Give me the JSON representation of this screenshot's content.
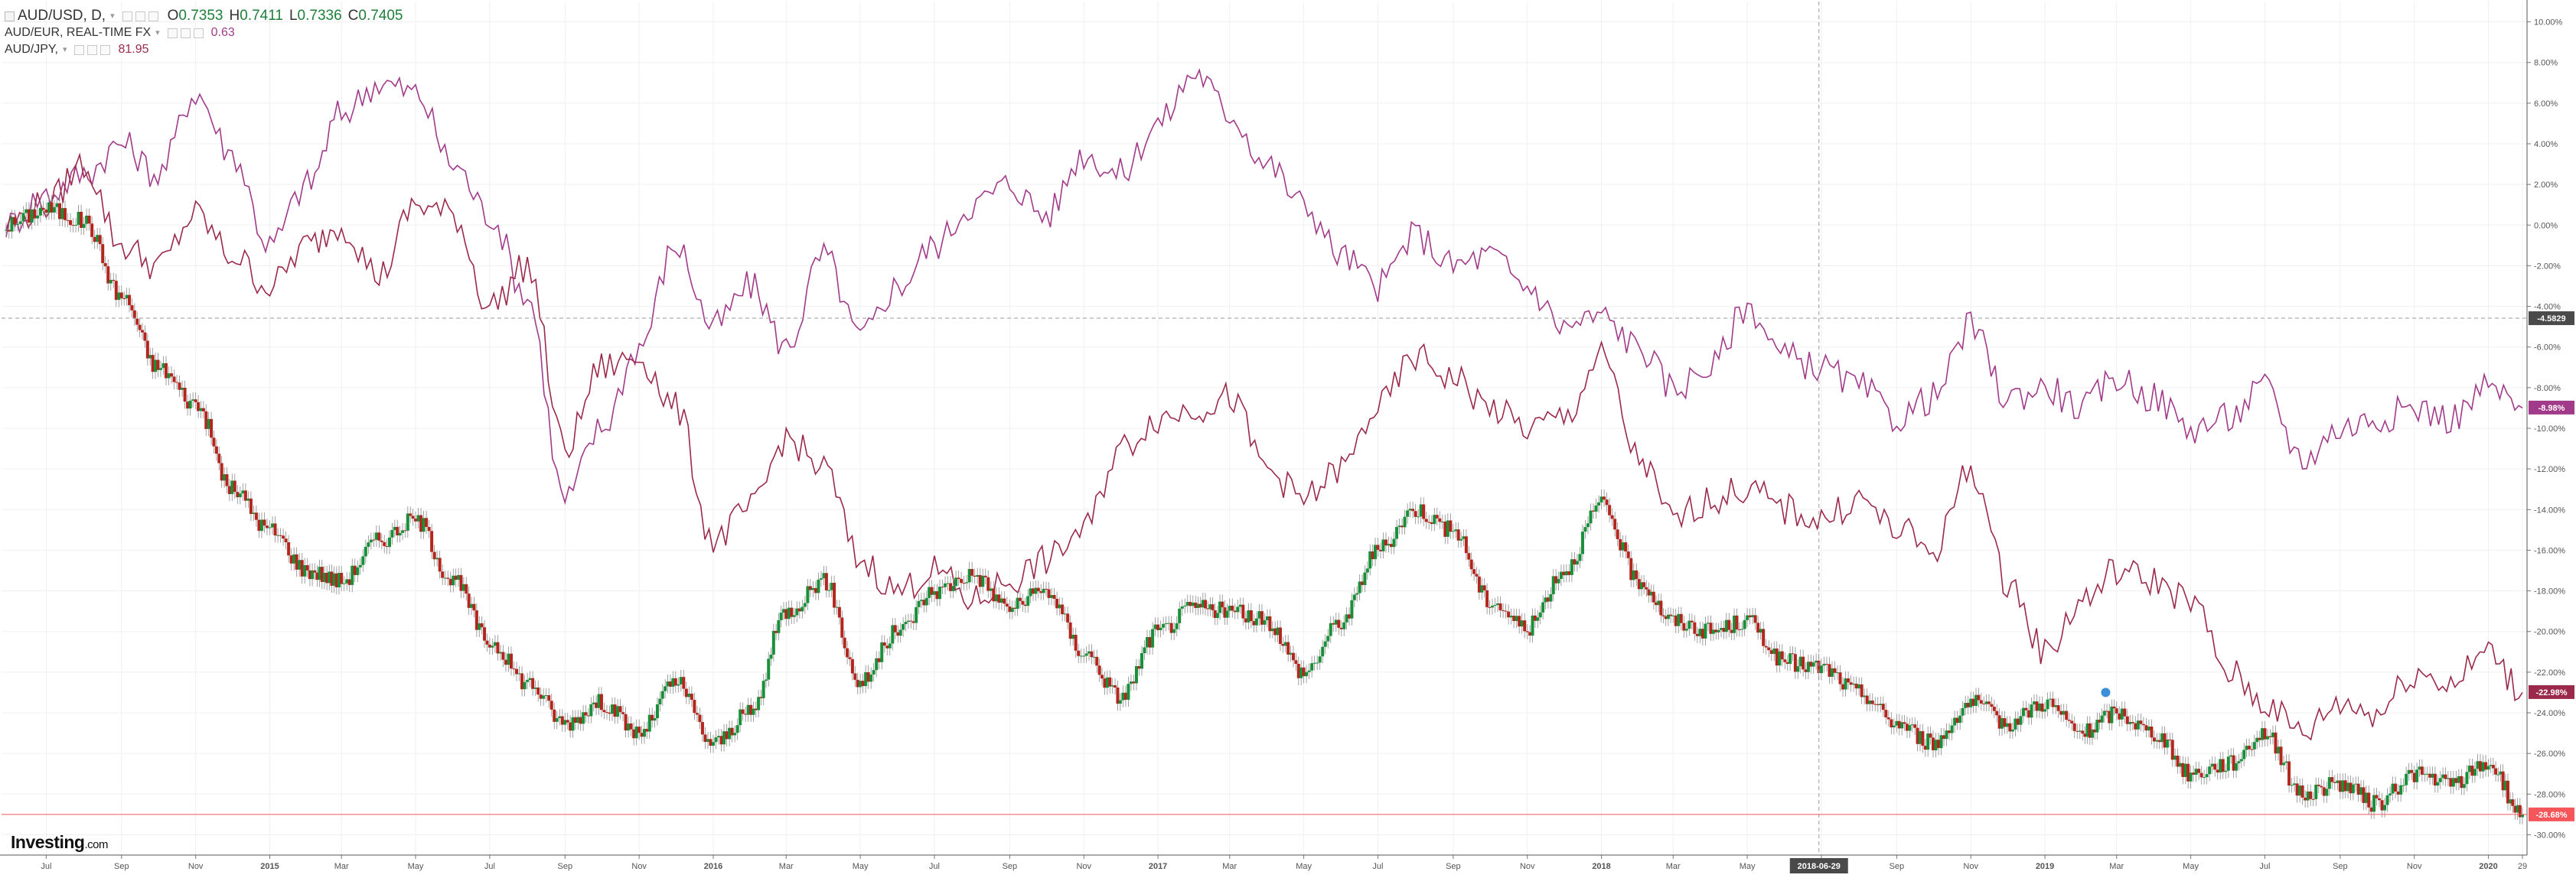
{
  "legend": {
    "main": {
      "symbol_label": "AUD/USD, D,",
      "open_label": "O",
      "open": "0.7353",
      "high_label": "H",
      "high": "0.7411",
      "low_label": "L",
      "low": "0.7336",
      "close_label": "C",
      "close": "0.7405"
    },
    "eur": {
      "label": "AUD/EUR, REAL-TIME FX",
      "value": "0.63"
    },
    "jpy": {
      "label": "AUD/JPY,",
      "value": "81.95"
    }
  },
  "logo": {
    "name": "Investing",
    "suffix": ".com"
  },
  "colors": {
    "up": "#1a8f3a",
    "down": "#b3261e",
    "aud_eur": "#a23a8a",
    "aud_jpy": "#9b2a4a",
    "last_price_line": "#f5565a",
    "crosshair_badge": "#4a4a4a"
  },
  "chart_data": {
    "type": "line",
    "title": "",
    "ylabel": "",
    "y_unit": "%",
    "ylim": [
      -31,
      11
    ],
    "y_ticks": [
      "10.00%",
      "8.00%",
      "6.00%",
      "4.00%",
      "2.00%",
      "0.00%",
      "-2.00%",
      "-4.00%",
      "-6.00%",
      "-8.00%",
      "-10.00%",
      "-12.00%",
      "-14.00%",
      "-16.00%",
      "-18.00%",
      "-20.00%",
      "-22.00%",
      "-24.00%",
      "-26.00%",
      "-28.00%",
      "-30.00%"
    ],
    "x_ticks": [
      "Jul",
      "Sep",
      "Nov",
      "2015",
      "Mar",
      "May",
      "Jul",
      "Sep",
      "Nov",
      "2016",
      "Mar",
      "May",
      "Jul",
      "Sep",
      "Nov",
      "2017",
      "Mar",
      "May",
      "Jul",
      "Sep",
      "Nov",
      "2018",
      "Mar",
      "May",
      "Jul",
      "Sep",
      "Nov",
      "2019",
      "Mar",
      "May",
      "Jul",
      "Sep",
      "Nov",
      "2020",
      "29"
    ],
    "grid": true,
    "series": [
      {
        "name": "AUD/USD",
        "style": "candles",
        "x": [
          "2014-05-29",
          "2014-07-01",
          "2014-08-01",
          "2014-09-01",
          "2014-10-01",
          "2014-11-01",
          "2014-12-01",
          "2015-01-01",
          "2015-02-01",
          "2015-03-01",
          "2015-04-01",
          "2015-05-01",
          "2015-06-01",
          "2015-07-01",
          "2015-08-01",
          "2015-09-01",
          "2015-10-01",
          "2015-11-01",
          "2015-12-01",
          "2016-01-01",
          "2016-02-01",
          "2016-03-01",
          "2016-04-01",
          "2016-05-01",
          "2016-06-01",
          "2016-07-01",
          "2016-08-01",
          "2016-09-01",
          "2016-10-01",
          "2016-11-01",
          "2016-12-01",
          "2017-01-01",
          "2017-02-01",
          "2017-03-01",
          "2017-04-01",
          "2017-05-01",
          "2017-06-01",
          "2017-07-01",
          "2017-08-01",
          "2017-09-01",
          "2017-10-01",
          "2017-11-01",
          "2017-12-01",
          "2018-01-01",
          "2018-02-01",
          "2018-03-01",
          "2018-04-01",
          "2018-05-01",
          "2018-06-01",
          "2018-07-01",
          "2018-08-01",
          "2018-09-01",
          "2018-10-01",
          "2018-11-01",
          "2018-12-01",
          "2019-01-01",
          "2019-02-01",
          "2019-03-01",
          "2019-04-01",
          "2019-05-01",
          "2019-06-01",
          "2019-07-01",
          "2019-08-01",
          "2019-09-01",
          "2019-10-01",
          "2019-11-01",
          "2019-12-01",
          "2020-01-01",
          "2020-01-29"
        ],
        "values": [
          0.0,
          0.8,
          0.2,
          -3.5,
          -7.0,
          -8.8,
          -13.0,
          -15.0,
          -17.0,
          -17.5,
          -15.5,
          -14.5,
          -17.5,
          -20.5,
          -22.5,
          -24.5,
          -23.5,
          -25.0,
          -22.5,
          -25.5,
          -24.0,
          -19.0,
          -17.5,
          -22.5,
          -20.0,
          -18.0,
          -17.2,
          -18.8,
          -18.0,
          -21.0,
          -23.2,
          -20.0,
          -18.8,
          -19.0,
          -19.5,
          -22.0,
          -19.5,
          -16.0,
          -14.0,
          -15.0,
          -18.5,
          -19.8,
          -17.0,
          -13.8,
          -17.5,
          -19.5,
          -20.0,
          -19.5,
          -21.5,
          -21.8,
          -23.0,
          -24.5,
          -25.5,
          -23.5,
          -24.5,
          -23.5,
          -25.0,
          -24.0,
          -25.0,
          -27.0,
          -26.5,
          -25.0,
          -28.0,
          -27.5,
          -28.5,
          -27.0,
          -27.5,
          -26.5,
          -29.0
        ]
      },
      {
        "name": "AUD/EUR",
        "style": "line",
        "x": [
          "2014-05-29",
          "2014-07-01",
          "2014-08-01",
          "2014-09-01",
          "2014-10-01",
          "2014-11-01",
          "2014-12-01",
          "2015-01-01",
          "2015-02-01",
          "2015-03-01",
          "2015-04-01",
          "2015-05-01",
          "2015-06-01",
          "2015-07-01",
          "2015-08-01",
          "2015-09-01",
          "2015-10-01",
          "2015-11-01",
          "2015-12-01",
          "2016-01-01",
          "2016-02-01",
          "2016-03-01",
          "2016-04-01",
          "2016-05-01",
          "2016-06-01",
          "2016-07-01",
          "2016-08-01",
          "2016-09-01",
          "2016-10-01",
          "2016-11-01",
          "2016-12-01",
          "2017-01-01",
          "2017-02-01",
          "2017-03-01",
          "2017-04-01",
          "2017-05-01",
          "2017-06-01",
          "2017-07-01",
          "2017-08-01",
          "2017-09-01",
          "2017-10-01",
          "2017-11-01",
          "2017-12-01",
          "2018-01-01",
          "2018-02-01",
          "2018-03-01",
          "2018-04-01",
          "2018-05-01",
          "2018-06-01",
          "2018-07-01",
          "2018-08-01",
          "2018-09-01",
          "2018-10-01",
          "2018-11-01",
          "2018-12-01",
          "2019-01-01",
          "2019-02-01",
          "2019-03-01",
          "2019-04-01",
          "2019-05-01",
          "2019-06-01",
          "2019-07-01",
          "2019-08-01",
          "2019-09-01",
          "2019-10-01",
          "2019-11-01",
          "2019-12-01",
          "2020-01-01",
          "2020-01-29"
        ],
        "values": [
          0.0,
          1.5,
          2.5,
          4.0,
          2.5,
          6.5,
          3.5,
          -1.0,
          2.0,
          5.5,
          7.0,
          6.5,
          3.0,
          0.5,
          -3.5,
          -13.5,
          -10.0,
          -6.0,
          -1.0,
          -5.0,
          -3.0,
          -6.0,
          -1.5,
          -5.5,
          -3.0,
          -1.0,
          1.0,
          2.0,
          0.5,
          3.5,
          2.5,
          5.0,
          7.5,
          5.5,
          3.0,
          1.0,
          -1.5,
          -3.0,
          -0.5,
          -2.0,
          -1.5,
          -3.0,
          -5.0,
          -4.5,
          -6.0,
          -8.0,
          -7.0,
          -4.0,
          -6.5,
          -7.0,
          -8.0,
          -9.5,
          -8.5,
          -5.0,
          -8.5,
          -8.0,
          -9.0,
          -7.5,
          -8.5,
          -10.0,
          -9.5,
          -8.0,
          -11.5,
          -10.0,
          -9.5,
          -9.0,
          -9.5,
          -8.0,
          -9.0
        ]
      },
      {
        "name": "AUD/JPY",
        "style": "line",
        "x": [
          "2014-05-29",
          "2014-07-01",
          "2014-08-01",
          "2014-09-01",
          "2014-10-01",
          "2014-11-01",
          "2014-12-01",
          "2015-01-01",
          "2015-02-01",
          "2015-03-01",
          "2015-04-01",
          "2015-05-01",
          "2015-06-01",
          "2015-07-01",
          "2015-08-01",
          "2015-09-01",
          "2015-10-01",
          "2015-11-01",
          "2015-12-01",
          "2016-01-01",
          "2016-02-01",
          "2016-03-01",
          "2016-04-01",
          "2016-05-01",
          "2016-06-01",
          "2016-07-01",
          "2016-08-01",
          "2016-09-01",
          "2016-10-01",
          "2016-11-01",
          "2016-12-01",
          "2017-01-01",
          "2017-02-01",
          "2017-03-01",
          "2017-04-01",
          "2017-05-01",
          "2017-06-01",
          "2017-07-01",
          "2017-08-01",
          "2017-09-01",
          "2017-10-01",
          "2017-11-01",
          "2017-12-01",
          "2018-01-01",
          "2018-02-01",
          "2018-03-01",
          "2018-04-01",
          "2018-05-01",
          "2018-06-01",
          "2018-07-01",
          "2018-08-01",
          "2018-09-01",
          "2018-10-01",
          "2018-11-01",
          "2018-12-01",
          "2019-01-01",
          "2019-02-01",
          "2019-03-01",
          "2019-04-01",
          "2019-05-01",
          "2019-06-01",
          "2019-07-01",
          "2019-08-01",
          "2019-09-01",
          "2019-10-01",
          "2019-11-01",
          "2019-12-01",
          "2020-01-01",
          "2020-01-29"
        ],
        "values": [
          0.0,
          1.0,
          3.0,
          -1.0,
          -2.0,
          0.5,
          -1.5,
          -3.0,
          -1.0,
          0.0,
          -2.5,
          1.0,
          0.5,
          -4.0,
          -2.0,
          -11.0,
          -7.0,
          -6.5,
          -9.0,
          -15.5,
          -14.0,
          -10.5,
          -12.0,
          -16.5,
          -18.0,
          -17.0,
          -18.5,
          -17.5,
          -16.5,
          -15.0,
          -11.0,
          -9.5,
          -9.0,
          -8.5,
          -12.0,
          -13.5,
          -12.0,
          -9.0,
          -6.5,
          -7.5,
          -9.0,
          -10.0,
          -9.5,
          -6.5,
          -11.5,
          -14.5,
          -13.5,
          -13.0,
          -14.0,
          -14.5,
          -13.5,
          -15.0,
          -16.0,
          -12.0,
          -17.5,
          -21.0,
          -18.5,
          -17.0,
          -17.5,
          -18.5,
          -22.0,
          -23.5,
          -25.0,
          -23.5,
          -24.0,
          -22.0,
          -22.5,
          -21.0,
          -23.0
        ]
      }
    ],
    "last_values": {
      "AUD/EUR": "-8.98%",
      "AUD/JPY": "-22.98%",
      "AUD/USD": "-28.68%"
    },
    "crosshair": {
      "price": "-4.5829",
      "date": "2018-06-29"
    }
  }
}
